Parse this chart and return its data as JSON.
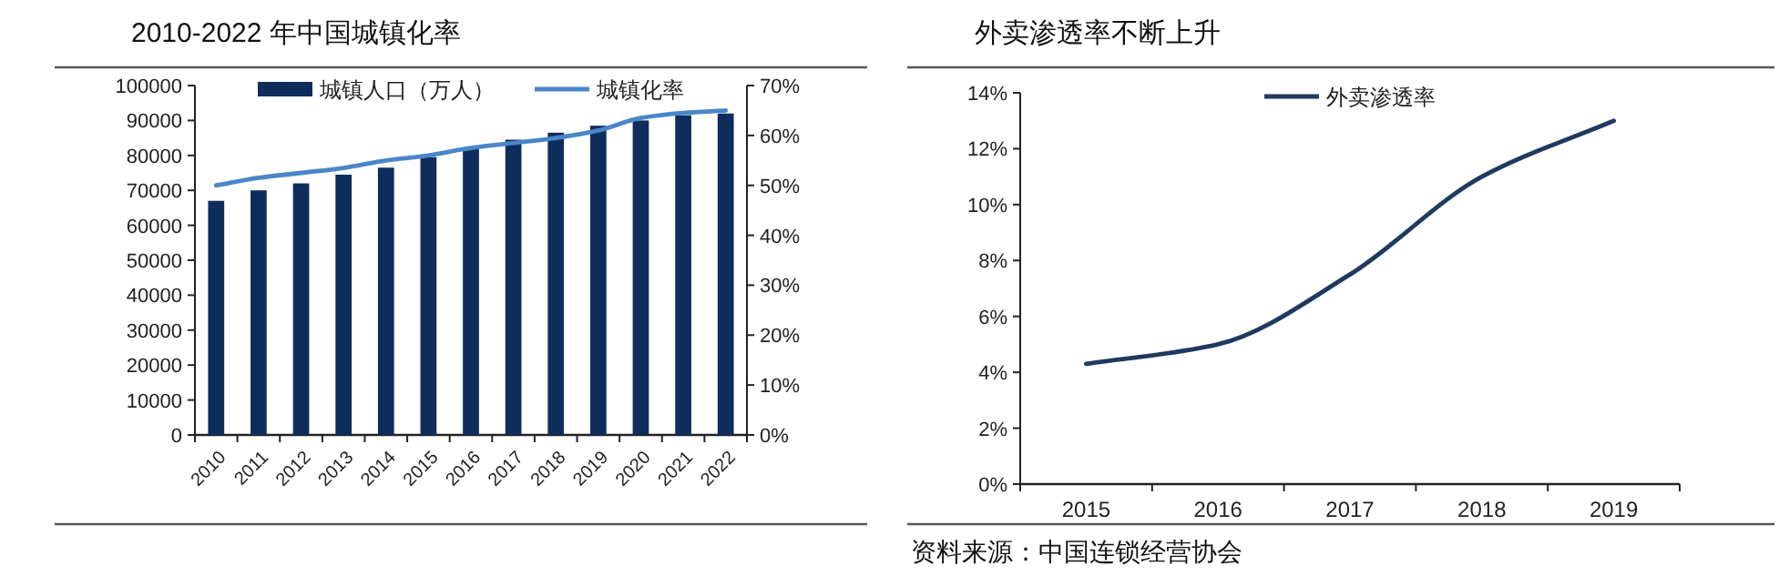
{
  "chart_data": [
    {
      "type": "bar",
      "title": "2010-2022 年中国城镇化率",
      "categories": [
        "2010",
        "2011",
        "2012",
        "2013",
        "2014",
        "2015",
        "2016",
        "2017",
        "2018",
        "2019",
        "2020",
        "2021",
        "2022"
      ],
      "series": [
        {
          "name": "城镇人口（万人）",
          "type": "bar",
          "color": "#0f2d5c",
          "values": [
            67000,
            70000,
            72000,
            74500,
            76500,
            79500,
            82000,
            84500,
            86500,
            88500,
            90000,
            91500,
            92000
          ]
        },
        {
          "name": "城镇化率",
          "type": "line",
          "axis": "y2",
          "color": "#4a86c8",
          "values": [
            50,
            51.5,
            52.5,
            53.5,
            55,
            56,
            57.5,
            58.5,
            59.5,
            61,
            63.5,
            64.5,
            65
          ]
        }
      ],
      "ylim": [
        0,
        100000
      ],
      "yticks": [
        0,
        10000,
        20000,
        30000,
        40000,
        50000,
        60000,
        70000,
        80000,
        90000,
        100000
      ],
      "y2lim": [
        0,
        70
      ],
      "y2ticks": [
        {
          "value": 0,
          "label": "0%"
        },
        {
          "value": 10,
          "label": "10%"
        },
        {
          "value": 20,
          "label": "20%"
        },
        {
          "value": 30,
          "label": "30%"
        },
        {
          "value": 40,
          "label": "40%"
        },
        {
          "value": 50,
          "label": "50%"
        },
        {
          "value": 60,
          "label": "60%"
        },
        {
          "value": 70,
          "label": "70%"
        }
      ],
      "legend": "top"
    },
    {
      "type": "line",
      "title": "外卖渗透率不断上升",
      "categories": [
        "2015",
        "2016",
        "2017",
        "2018",
        "2019"
      ],
      "series": [
        {
          "name": "外卖渗透率",
          "color": "#1f3a5f",
          "values": [
            4.3,
            5.0,
            7.5,
            11.0,
            13.0
          ]
        }
      ],
      "ylim": [
        0,
        14
      ],
      "yticks": [
        {
          "value": 0,
          "label": "0%"
        },
        {
          "value": 2,
          "label": "2%"
        },
        {
          "value": 4,
          "label": "4%"
        },
        {
          "value": 6,
          "label": "6%"
        },
        {
          "value": 8,
          "label": "8%"
        },
        {
          "value": 10,
          "label": "10%"
        },
        {
          "value": 12,
          "label": "12%"
        },
        {
          "value": 14,
          "label": "14%"
        }
      ],
      "legend": "top",
      "annotations": [
        "资料来源：中国连锁经营协会"
      ]
    }
  ]
}
